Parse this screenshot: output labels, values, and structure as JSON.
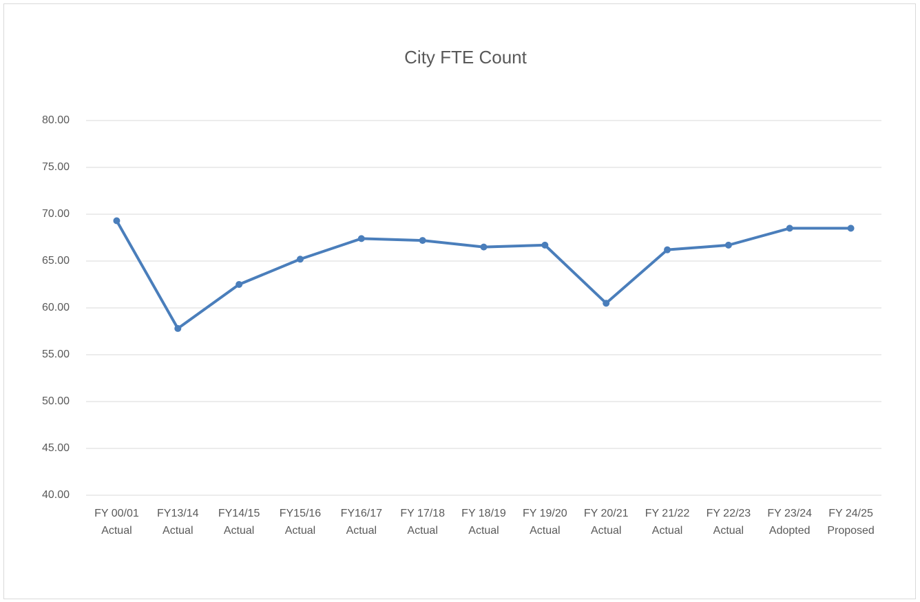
{
  "chart_data": {
    "type": "line",
    "title": "City FTE Count",
    "categories": [
      [
        "FY 00/01",
        "Actual"
      ],
      [
        "FY13/14",
        "Actual"
      ],
      [
        "FY14/15",
        "Actual"
      ],
      [
        "FY15/16",
        "Actual"
      ],
      [
        "FY16/17",
        "Actual"
      ],
      [
        "FY 17/18",
        "Actual"
      ],
      [
        "FY 18/19",
        "Actual"
      ],
      [
        "FY 19/20",
        "Actual"
      ],
      [
        "FY 20/21",
        "Actual"
      ],
      [
        "FY 21/22",
        "Actual"
      ],
      [
        "FY 22/23",
        "Actual"
      ],
      [
        "FY 23/24",
        "Adopted"
      ],
      [
        "FY 24/25",
        "Proposed"
      ]
    ],
    "values": [
      69.3,
      57.8,
      62.5,
      65.2,
      67.4,
      67.2,
      66.5,
      66.7,
      60.5,
      66.2,
      66.7,
      68.5,
      68.5
    ],
    "color": "#4a7ebb",
    "ylim": [
      40,
      80
    ],
    "yticks": [
      {
        "value": 40,
        "label": "40.00"
      },
      {
        "value": 45,
        "label": "45.00"
      },
      {
        "value": 50,
        "label": "50.00"
      },
      {
        "value": 55,
        "label": "55.00"
      },
      {
        "value": 60,
        "label": "60.00"
      },
      {
        "value": 65,
        "label": "65.00"
      },
      {
        "value": 70,
        "label": "70.00"
      },
      {
        "value": 75,
        "label": "75.00"
      },
      {
        "value": 80,
        "label": "80.00"
      }
    ],
    "grid": true
  }
}
